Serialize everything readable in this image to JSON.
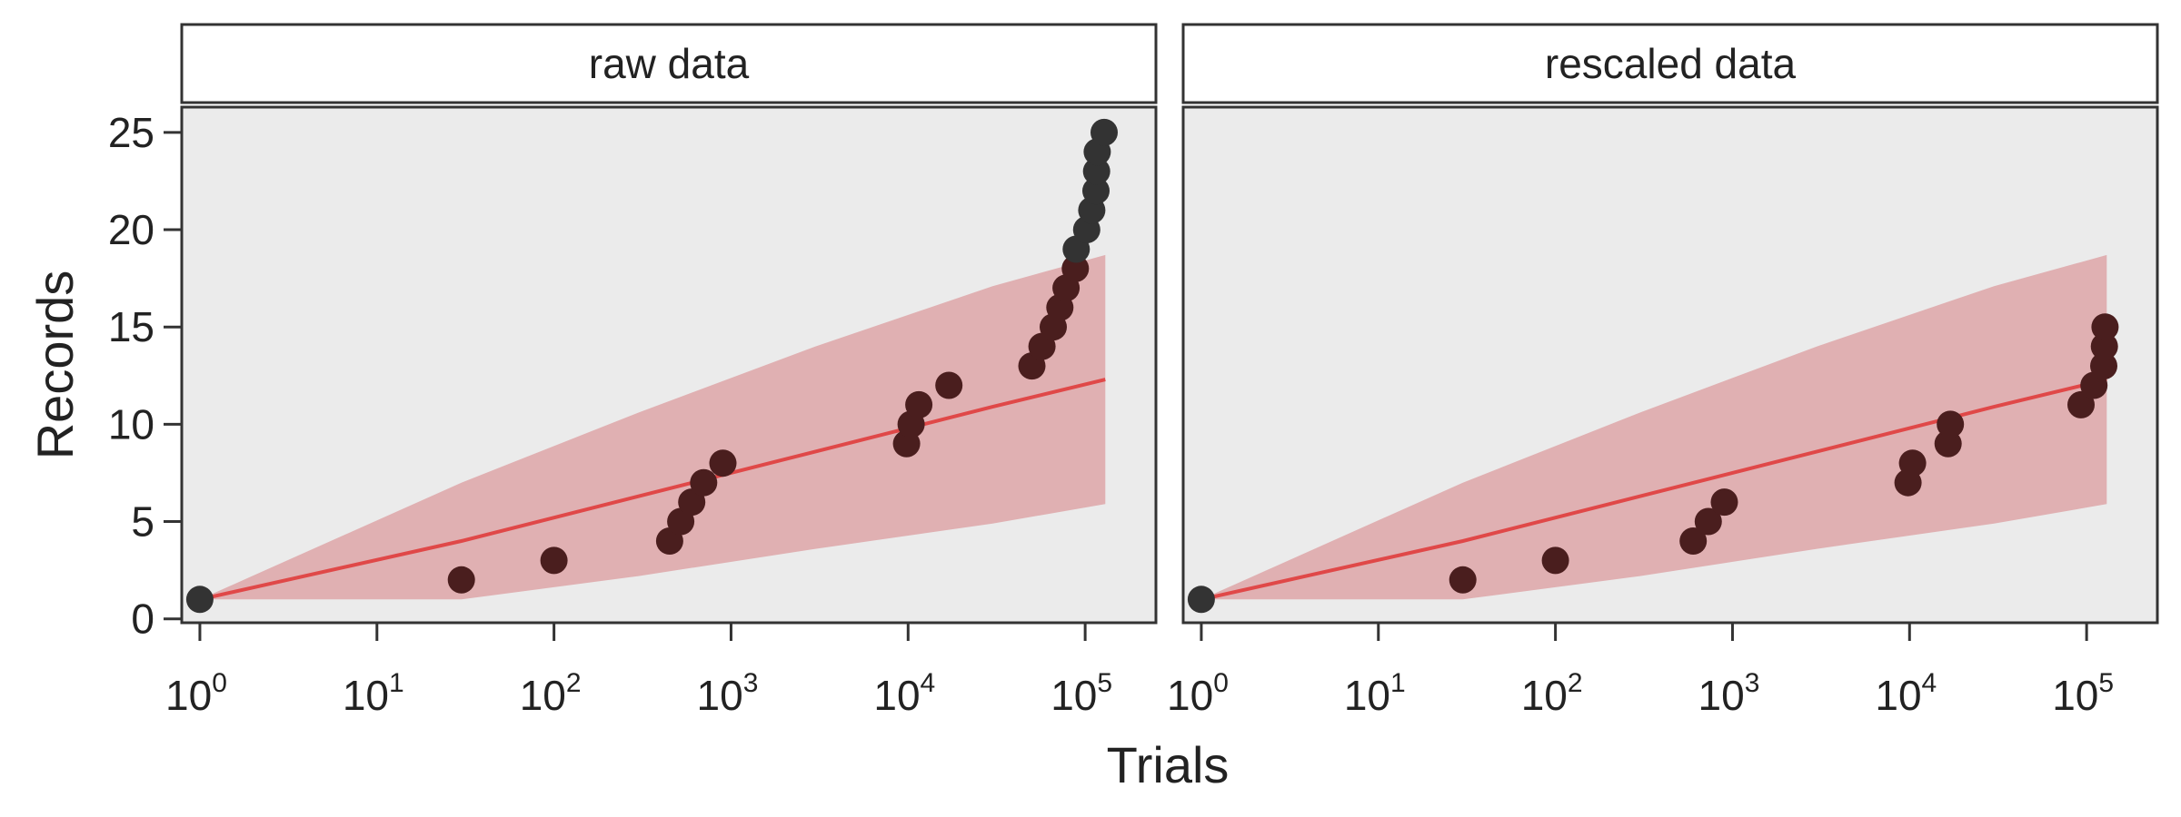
{
  "chart_data": {
    "type": "scatter",
    "x_scale": "log10",
    "xlabel": "Trials",
    "ylabel": "Records",
    "xlim": [
      0.79,
      251000
    ],
    "ylim": [
      -0.2,
      26.3
    ],
    "y_ticks": [
      0,
      5,
      10,
      15,
      20,
      25
    ],
    "x_ticks": [
      {
        "value": 1,
        "base": "10",
        "exp": "0"
      },
      {
        "value": 10,
        "base": "10",
        "exp": "1"
      },
      {
        "value": 100,
        "base": "10",
        "exp": "2"
      },
      {
        "value": 1000,
        "base": "10",
        "exp": "3"
      },
      {
        "value": 10000,
        "base": "10",
        "exp": "4"
      },
      {
        "value": 100000,
        "base": "10",
        "exp": "5"
      }
    ],
    "colors": {
      "panel_bg": "#ebebeb",
      "ribbon": "#e0b0b2",
      "line": "#e04848",
      "point_inside": "#4a1e1e",
      "point_outside": "#333333",
      "strip_bg": "#ffffff",
      "frame": "#333333"
    },
    "expected": {
      "x": [
        1,
        30,
        300,
        3000,
        30000,
        130000
      ],
      "mean": [
        1,
        4,
        6.3,
        8.6,
        10.9,
        12.3
      ],
      "lower": [
        1,
        1,
        2.2,
        3.6,
        4.9,
        5.9
      ],
      "upper": [
        1,
        7,
        10.6,
        14,
        17.1,
        18.7
      ]
    },
    "panels": [
      {
        "title": "raw data",
        "points": [
          {
            "x": 1,
            "y": 1
          },
          {
            "x": 30,
            "y": 2
          },
          {
            "x": 100,
            "y": 3
          },
          {
            "x": 450,
            "y": 4
          },
          {
            "x": 520,
            "y": 5
          },
          {
            "x": 600,
            "y": 6
          },
          {
            "x": 700,
            "y": 7
          },
          {
            "x": 900,
            "y": 8
          },
          {
            "x": 9800,
            "y": 9
          },
          {
            "x": 10400,
            "y": 10
          },
          {
            "x": 11500,
            "y": 11
          },
          {
            "x": 17000,
            "y": 12
          },
          {
            "x": 50000,
            "y": 13
          },
          {
            "x": 57000,
            "y": 14
          },
          {
            "x": 66000,
            "y": 15
          },
          {
            "x": 72000,
            "y": 16
          },
          {
            "x": 78000,
            "y": 17
          },
          {
            "x": 88000,
            "y": 18
          },
          {
            "x": 89000,
            "y": 19
          },
          {
            "x": 102000,
            "y": 20
          },
          {
            "x": 109000,
            "y": 21
          },
          {
            "x": 115000,
            "y": 22
          },
          {
            "x": 116000,
            "y": 23
          },
          {
            "x": 117000,
            "y": 24
          },
          {
            "x": 128000,
            "y": 25
          }
        ]
      },
      {
        "title": "rescaled data",
        "points": [
          {
            "x": 1,
            "y": 1
          },
          {
            "x": 30,
            "y": 2
          },
          {
            "x": 100,
            "y": 3
          },
          {
            "x": 600,
            "y": 4
          },
          {
            "x": 730,
            "y": 5
          },
          {
            "x": 900,
            "y": 6
          },
          {
            "x": 9800,
            "y": 7
          },
          {
            "x": 10400,
            "y": 8
          },
          {
            "x": 16500,
            "y": 9
          },
          {
            "x": 17000,
            "y": 10
          },
          {
            "x": 93000,
            "y": 11
          },
          {
            "x": 110000,
            "y": 12
          },
          {
            "x": 125000,
            "y": 13
          },
          {
            "x": 126000,
            "y": 14
          },
          {
            "x": 127000,
            "y": 15
          }
        ]
      }
    ]
  }
}
